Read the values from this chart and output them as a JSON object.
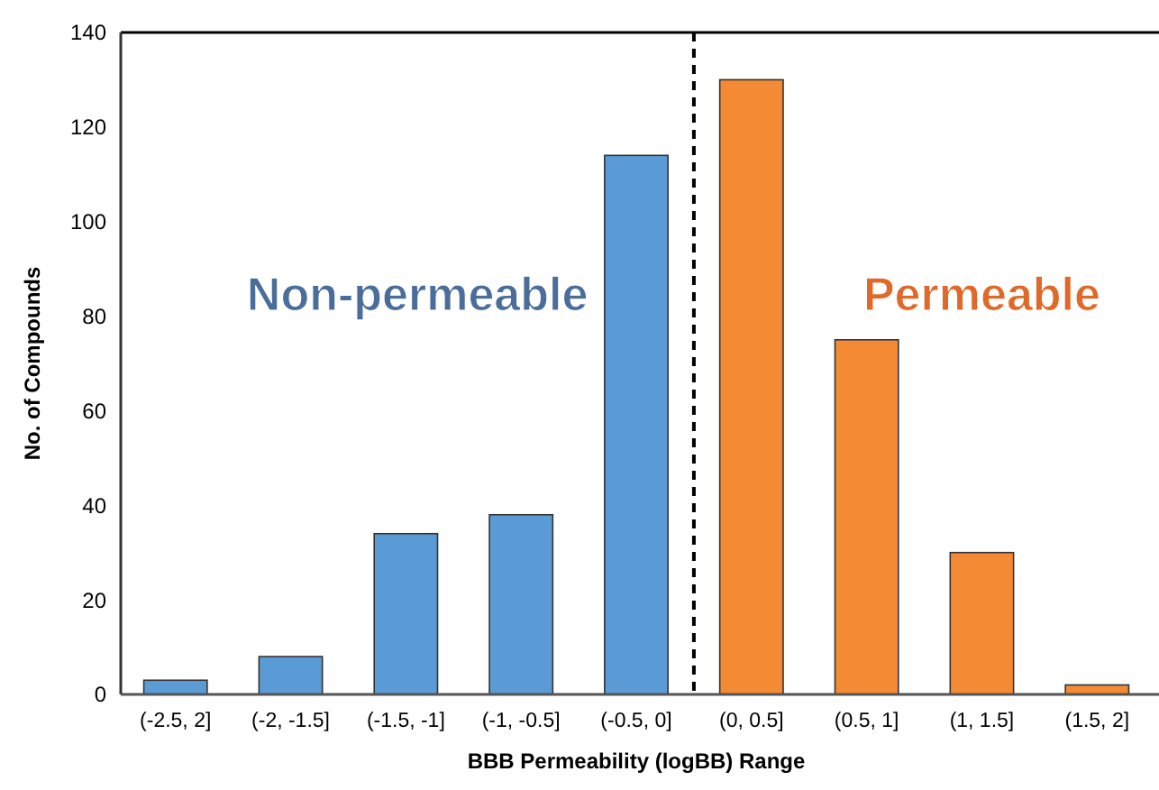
{
  "chart_data": {
    "type": "bar",
    "xlabel": "BBB Permeability (logBB) Range",
    "ylabel": "No. of Compounds",
    "categories": [
      "(-2.5, 2]",
      "(-2, -1.5]",
      "(-1.5, -1]",
      "(-1, -0.5]",
      "(-0.5, 0]",
      "(0, 0.5]",
      "(0.5, 1]",
      "(1, 1.5]",
      "(1.5, 2]"
    ],
    "values": [
      3,
      8,
      34,
      38,
      114,
      130,
      75,
      30,
      2
    ],
    "colors": [
      "#5b9bd5",
      "#5b9bd5",
      "#5b9bd5",
      "#5b9bd5",
      "#5b9bd5",
      "#f58a35",
      "#f58a35",
      "#f58a35",
      "#f58a35"
    ],
    "ylim": [
      0,
      140
    ],
    "yticks": [
      0,
      20,
      40,
      60,
      80,
      100,
      120,
      140
    ],
    "grid": false,
    "annotations": [
      "Non-permeable",
      "Permeable"
    ]
  }
}
